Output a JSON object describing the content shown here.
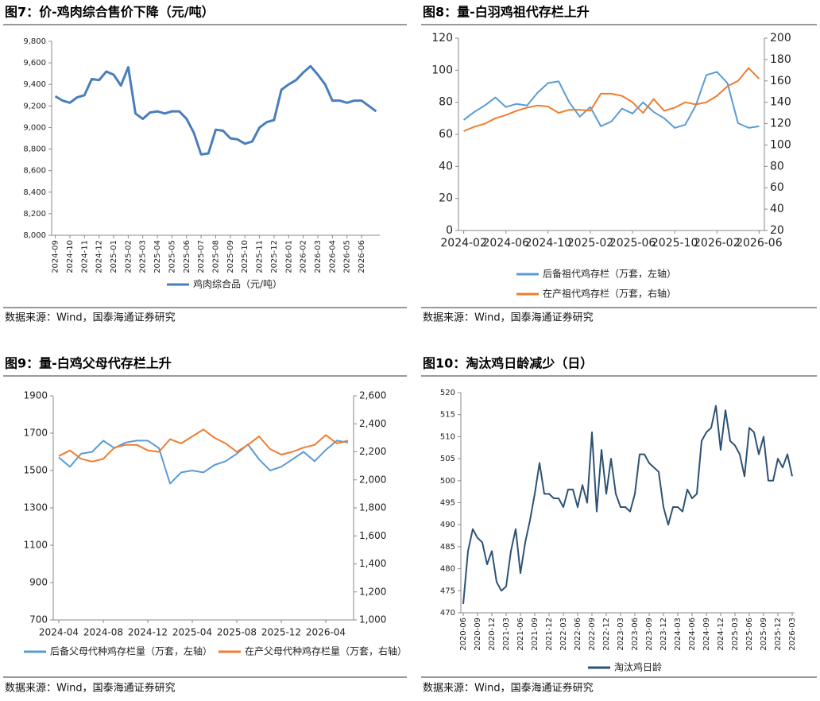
{
  "chart_data": [
    {
      "type": "line",
      "title": "图7：价-鸡肉综合售价下降（元/吨）",
      "source": "数据来源：Wind，国泰海通证券研究",
      "categories": [
        "2024-09",
        null,
        "2024-10",
        null,
        "2024-11",
        null,
        "2024-12",
        null,
        "2025-01",
        null,
        "2025-02",
        null,
        "2025-03",
        null,
        "2025-04",
        null,
        "2025-05",
        null,
        "2025-06",
        null,
        "2025-07",
        null,
        "2025-08",
        null,
        "2025-09",
        null,
        "2025-10",
        null,
        "2025-11",
        null,
        "2025-12",
        null,
        "2026-01",
        null,
        "2026-02",
        null,
        "2026-03",
        null,
        "2026-04",
        null,
        "2026-05",
        null,
        "2026-06",
        null,
        null
      ],
      "series": [
        {
          "name": "鸡肉综合品（元/吨）",
          "color": "#4a7ebb",
          "values": [
            9290,
            9250,
            9230,
            9280,
            9300,
            9450,
            9440,
            9520,
            9490,
            9390,
            9560,
            9130,
            9080,
            9140,
            9150,
            9130,
            9150,
            9150,
            9080,
            8950,
            8750,
            8760,
            8980,
            8970,
            8900,
            8890,
            8850,
            8870,
            9000,
            9050,
            9070,
            9350,
            9400,
            9440,
            9510,
            9570,
            9490,
            9400,
            9250,
            9250,
            9230,
            9250,
            9250,
            9200,
            9150
          ]
        }
      ],
      "ylim": [
        8000,
        9800
      ],
      "yticks": [
        {
          "value": 8000,
          "label": "8,000"
        },
        {
          "value": 8200,
          "label": "8,200"
        },
        {
          "value": 8400,
          "label": "8,400"
        },
        {
          "value": 8600,
          "label": "8,600"
        },
        {
          "value": 8800,
          "label": "8,800"
        },
        {
          "value": 9000,
          "label": "9,000"
        },
        {
          "value": 9200,
          "label": "9,200"
        },
        {
          "value": 9400,
          "label": "9,400"
        },
        {
          "value": 9600,
          "label": "9,600"
        },
        {
          "value": 9800,
          "label": "9,800"
        }
      ],
      "legend": "bottom"
    },
    {
      "type": "line",
      "title": "图8：量-白羽鸡祖代存栏上升",
      "source": "数据来源：Wind，国泰海通证券研究",
      "categories": [
        "2024-02",
        null,
        null,
        null,
        "2024-06",
        null,
        null,
        null,
        "2024-10",
        null,
        null,
        null,
        "2025-02",
        null,
        null,
        null,
        "2025-06",
        null,
        null,
        null,
        "2025-10",
        null,
        null,
        null,
        "2026-02",
        null,
        null,
        null,
        "2026-06"
      ],
      "series": [
        {
          "name": "后备祖代鸡存栏（万套，左轴）",
          "color": "#5b9bd5",
          "values": [
            69,
            74,
            78,
            83,
            77,
            79,
            78,
            86,
            92,
            93,
            80,
            71,
            77,
            65,
            68,
            76,
            73,
            80,
            74,
            70,
            64,
            66,
            78,
            97,
            99,
            92,
            67,
            64,
            65
          ]
        },
        {
          "name": "在产祖代鸡存栏（万套，右轴）",
          "color": "#ed7d31",
          "axis": "y2",
          "values": [
            113,
            117,
            120,
            125,
            128,
            132,
            135,
            137,
            136,
            130,
            133,
            133,
            132,
            148,
            148,
            146,
            140,
            130,
            143,
            132,
            135,
            140,
            138,
            140,
            146,
            155,
            160,
            172,
            162
          ]
        }
      ],
      "ylim": [
        0,
        120
      ],
      "yticks": [
        0,
        20,
        40,
        60,
        80,
        100,
        120
      ],
      "y2lim": [
        20,
        200
      ],
      "y2ticks": [
        20,
        40,
        60,
        80,
        100,
        120,
        140,
        160,
        180,
        200
      ],
      "legend": "bottom"
    },
    {
      "type": "line",
      "title": "图9：量-白鸡父母代存栏上升",
      "source": "数据来源：Wind，国泰海通证券研究",
      "categories": [
        "2024-04",
        null,
        null,
        null,
        "2024-08",
        null,
        null,
        null,
        "2024-12",
        null,
        null,
        null,
        "2025-04",
        null,
        null,
        null,
        "2025-08",
        null,
        null,
        null,
        "2025-12",
        null,
        null,
        null,
        "2026-04",
        null,
        null
      ],
      "series": [
        {
          "name": "后备父母代种鸡存栏量（万套，左轴）",
          "color": "#5b9bd5",
          "values": [
            1570,
            1520,
            1590,
            1600,
            1660,
            1620,
            1650,
            1660,
            1660,
            1620,
            1430,
            1490,
            1500,
            1490,
            1530,
            1550,
            1590,
            1640,
            1560,
            1500,
            1520,
            1560,
            1600,
            1550,
            1610,
            1660,
            1650
          ]
        },
        {
          "name": "在产父母代种鸡存栏量（万套，右轴）",
          "color": "#ed7d31",
          "axis": "y2",
          "values": [
            2170,
            2210,
            2150,
            2130,
            2150,
            2230,
            2250,
            2250,
            2210,
            2200,
            2290,
            2260,
            2310,
            2360,
            2300,
            2260,
            2200,
            2250,
            2310,
            2220,
            2180,
            2200,
            2230,
            2250,
            2320,
            2260,
            2280
          ]
        }
      ],
      "ylim": [
        700,
        1900
      ],
      "yticks": [
        700,
        900,
        1100,
        1300,
        1500,
        1700,
        1900
      ],
      "y2lim": [
        1000,
        2600
      ],
      "y2ticks": [
        {
          "value": 1000,
          "label": "1,000"
        },
        {
          "value": 1200,
          "label": "1,200"
        },
        {
          "value": 1400,
          "label": "1,400"
        },
        {
          "value": 1600,
          "label": "1,600"
        },
        {
          "value": 1800,
          "label": "1,800"
        },
        {
          "value": 2000,
          "label": "2,000"
        },
        {
          "value": 2200,
          "label": "2,200"
        },
        {
          "value": 2400,
          "label": "2,400"
        },
        {
          "value": 2600,
          "label": "2,600"
        }
      ],
      "legend": "bottom"
    },
    {
      "type": "line",
      "title": "图10：淘汰鸡日龄减少（日）",
      "source": "数据来源：Wind，国泰海通证券研究",
      "categories": [
        "2020-06",
        null,
        null,
        "2020-09",
        null,
        null,
        "2020-12",
        null,
        null,
        "2021-03",
        null,
        null,
        "2021-06",
        null,
        null,
        "2021-09",
        null,
        null,
        "2021-12",
        null,
        null,
        "2022-03",
        null,
        null,
        "2022-06",
        null,
        null,
        "2022-09",
        null,
        null,
        "2022-12",
        null,
        null,
        "2023-03",
        null,
        null,
        "2023-06",
        null,
        null,
        "2023-09",
        null,
        null,
        "2023-12",
        null,
        null,
        "2024-03",
        null,
        null,
        "2024-06",
        null,
        null,
        "2024-09",
        null,
        null,
        "2024-12",
        null,
        null,
        "2025-03",
        null,
        null,
        "2025-06",
        null,
        null,
        "2025-09",
        null,
        null,
        "2025-12",
        null,
        null,
        "2026-03"
      ],
      "series": [
        {
          "name": "淘汰鸡日龄",
          "color": "#2e5274",
          "values": [
            472,
            484,
            489,
            487,
            486,
            481,
            484,
            477,
            475,
            476,
            484,
            489,
            479,
            486,
            491,
            497,
            504,
            497,
            497,
            496,
            496,
            494,
            498,
            498,
            494,
            499,
            495,
            511,
            493,
            507,
            497,
            505,
            497,
            494,
            494,
            493,
            497,
            506,
            506,
            504,
            503,
            502,
            494,
            490,
            494,
            494,
            493,
            498,
            496,
            497,
            509,
            511,
            512,
            517,
            507,
            516,
            509,
            508,
            506,
            501,
            512,
            511,
            506,
            510,
            500,
            500,
            505,
            503,
            506,
            501
          ]
        }
      ],
      "ylim": [
        470,
        520
      ],
      "yticks": [
        470,
        475,
        480,
        485,
        490,
        495,
        500,
        505,
        510,
        515,
        520
      ],
      "legend": "bottom"
    }
  ]
}
